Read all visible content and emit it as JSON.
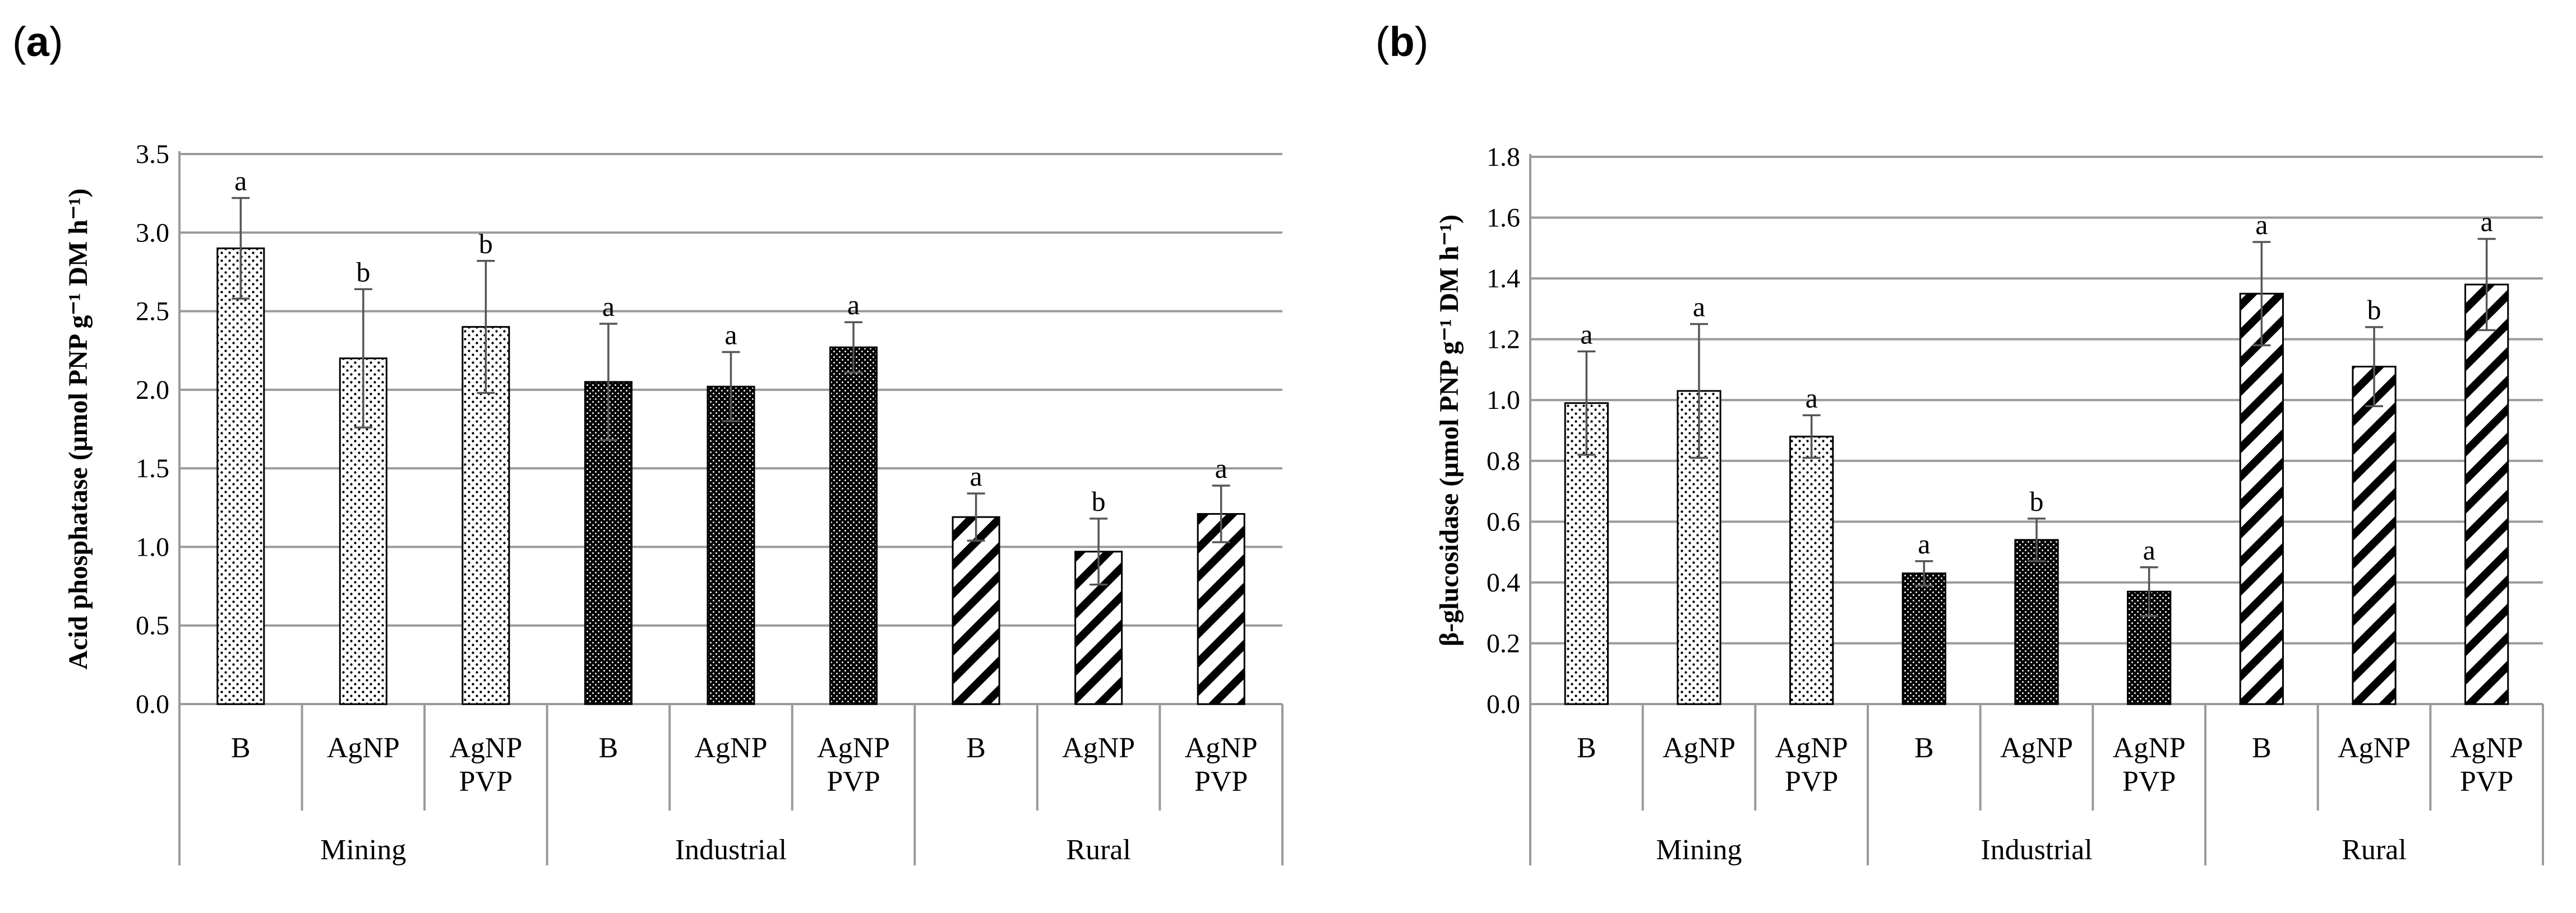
{
  "panels": [
    {
      "label_open": "(",
      "label_letter": "a",
      "label_close": ")"
    },
    {
      "label_open": "(",
      "label_letter": "b",
      "label_close": ")"
    }
  ],
  "chart_data": [
    {
      "type": "bar",
      "ylabel": "Acid phosphatase (µmol PNP g⁻¹ DM h⁻¹)",
      "ylim": [
        0,
        3.5
      ],
      "ytick_step": 0.5,
      "ytick_decimals": 1,
      "grid": true,
      "groups": [
        {
          "name": "Mining",
          "pattern": "dots",
          "bars": [
            {
              "category": "B",
              "value": 2.9,
              "error": 0.32,
              "letter": "a"
            },
            {
              "category": "AgNP",
              "value": 2.2,
              "error": 0.44,
              "letter": "b"
            },
            {
              "category": "AgNP PVP",
              "value": 2.4,
              "error": 0.42,
              "letter": "b"
            }
          ]
        },
        {
          "name": "Industrial",
          "pattern": "dense",
          "bars": [
            {
              "category": "B",
              "value": 2.05,
              "error": 0.37,
              "letter": "a"
            },
            {
              "category": "AgNP",
              "value": 2.02,
              "error": 0.22,
              "letter": "a"
            },
            {
              "category": "AgNP PVP",
              "value": 2.27,
              "error": 0.16,
              "letter": "a"
            }
          ]
        },
        {
          "name": "Rural",
          "pattern": "hatch",
          "bars": [
            {
              "category": "B",
              "value": 1.19,
              "error": 0.15,
              "letter": "a"
            },
            {
              "category": "AgNP",
              "value": 0.97,
              "error": 0.21,
              "letter": "b"
            },
            {
              "category": "AgNP PVP",
              "value": 1.21,
              "error": 0.18,
              "letter": "a"
            }
          ]
        }
      ]
    },
    {
      "type": "bar",
      "ylabel": "β-glucosidase (µmol PNP g⁻¹ DM h⁻¹)",
      "ylim": [
        0,
        1.8
      ],
      "ytick_step": 0.2,
      "ytick_decimals": 1,
      "grid": true,
      "groups": [
        {
          "name": "Mining",
          "pattern": "dots",
          "bars": [
            {
              "category": "B",
              "value": 0.99,
              "error": 0.17,
              "letter": "a"
            },
            {
              "category": "AgNP",
              "value": 1.03,
              "error": 0.22,
              "letter": "a"
            },
            {
              "category": "AgNP PVP",
              "value": 0.88,
              "error": 0.07,
              "letter": "a"
            }
          ]
        },
        {
          "name": "Industrial",
          "pattern": "dense",
          "bars": [
            {
              "category": "B",
              "value": 0.43,
              "error": 0.04,
              "letter": "a"
            },
            {
              "category": "AgNP",
              "value": 0.54,
              "error": 0.07,
              "letter": "b"
            },
            {
              "category": "AgNP PVP",
              "value": 0.37,
              "error": 0.08,
              "letter": "a"
            }
          ]
        },
        {
          "name": "Rural",
          "pattern": "hatch",
          "bars": [
            {
              "category": "B",
              "value": 1.35,
              "error": 0.17,
              "letter": "a"
            },
            {
              "category": "AgNP",
              "value": 1.11,
              "error": 0.13,
              "letter": "b"
            },
            {
              "category": "AgNP PVP",
              "value": 1.38,
              "error": 0.15,
              "letter": "a"
            }
          ]
        }
      ]
    }
  ]
}
